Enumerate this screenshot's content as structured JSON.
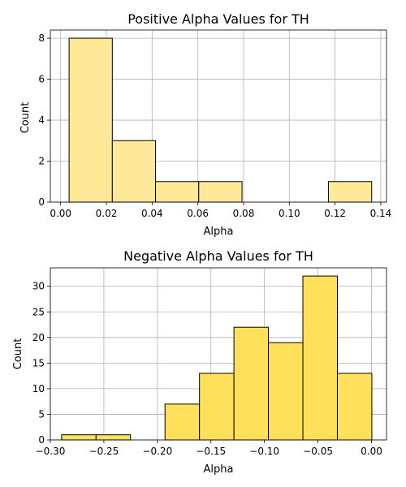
{
  "chart_data": [
    {
      "type": "bar",
      "title": "Positive Alpha Values for TH",
      "xlabel": "Alpha",
      "ylabel": "Count",
      "color": "#ffe999",
      "grid": true,
      "xlim": [
        -0.0045,
        0.1425
      ],
      "ylim": [
        0,
        8.4
      ],
      "xticks": [
        0.0,
        0.02,
        0.04,
        0.06,
        0.08,
        0.1,
        0.12,
        0.14
      ],
      "xtick_labels": [
        "0.00",
        "0.02",
        "0.04",
        "0.06",
        "0.08",
        "0.10",
        "0.12",
        "0.14"
      ],
      "yticks": [
        0,
        2,
        4,
        6,
        8
      ],
      "ytick_labels": [
        "0",
        "2",
        "4",
        "6",
        "8"
      ],
      "bins": [
        {
          "start": 0.0037,
          "end": 0.0226,
          "count": 8
        },
        {
          "start": 0.0226,
          "end": 0.0415,
          "count": 3
        },
        {
          "start": 0.0415,
          "end": 0.0604,
          "count": 1
        },
        {
          "start": 0.0604,
          "end": 0.0793,
          "count": 1
        },
        {
          "start": 0.0793,
          "end": 0.0982,
          "count": 0
        },
        {
          "start": 0.0982,
          "end": 0.1171,
          "count": 0
        },
        {
          "start": 0.1171,
          "end": 0.136,
          "count": 1
        }
      ]
    },
    {
      "type": "bar",
      "title": "Negative Alpha Values for TH",
      "xlabel": "Alpha",
      "ylabel": "Count",
      "color": "#ffe05a",
      "grid": true,
      "xlim": [
        -0.3,
        0.014
      ],
      "ylim": [
        0,
        33.6
      ],
      "xticks": [
        -0.3,
        -0.25,
        -0.2,
        -0.15,
        -0.1,
        -0.05,
        0.0
      ],
      "xtick_labels": [
        "−0.30",
        "−0.25",
        "−0.20",
        "−0.15",
        "−0.10",
        "−0.05",
        "0.00"
      ],
      "yticks": [
        0,
        5,
        10,
        15,
        20,
        25,
        30
      ],
      "ytick_labels": [
        "0",
        "5",
        "10",
        "15",
        "20",
        "25",
        "30"
      ],
      "bins": [
        {
          "start": -0.2895,
          "end": -0.2573,
          "count": 1
        },
        {
          "start": -0.2573,
          "end": -0.2251,
          "count": 1
        },
        {
          "start": -0.2251,
          "end": -0.1929,
          "count": 0
        },
        {
          "start": -0.1929,
          "end": -0.1607,
          "count": 7
        },
        {
          "start": -0.1607,
          "end": -0.1285,
          "count": 13
        },
        {
          "start": -0.1285,
          "end": -0.0963,
          "count": 22
        },
        {
          "start": -0.0963,
          "end": -0.0641,
          "count": 19
        },
        {
          "start": -0.0641,
          "end": -0.0319,
          "count": 32
        },
        {
          "start": -0.0319,
          "end": 0.0003,
          "count": 13
        }
      ]
    }
  ]
}
